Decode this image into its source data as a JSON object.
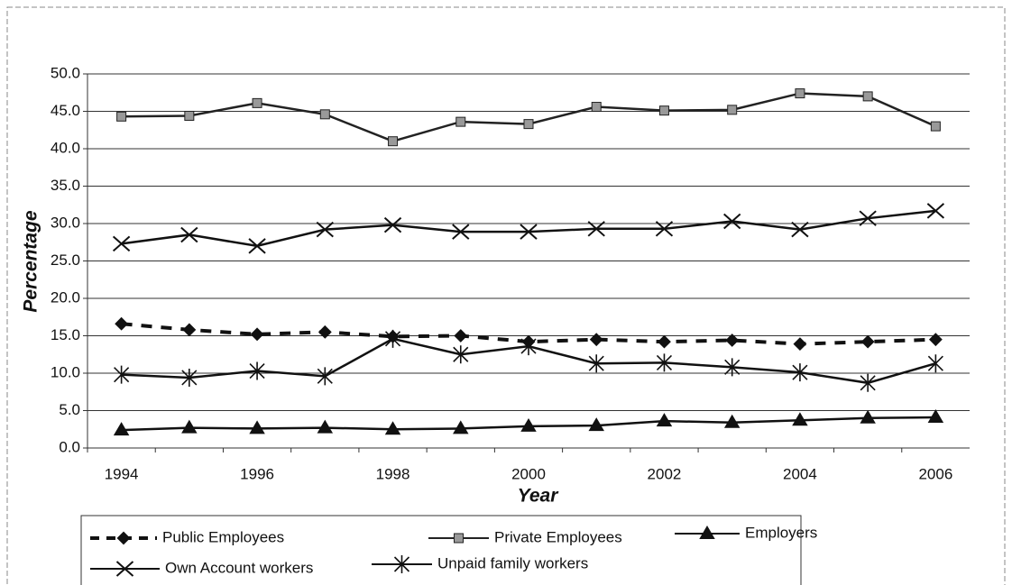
{
  "chart_data": {
    "type": "line",
    "x_label": "Year",
    "y_label": "Percentage",
    "categories": [
      "1994",
      null,
      "1996",
      null,
      "1998",
      null,
      "2000",
      null,
      "2002",
      null,
      "2004",
      null,
      "2006"
    ],
    "ylim": [
      0,
      50
    ],
    "yticks": [
      {
        "value": 0,
        "label": "0.0"
      },
      {
        "value": 5,
        "label": "5.0"
      },
      {
        "value": 10,
        "label": "10.0"
      },
      {
        "value": 15,
        "label": "15.0"
      },
      {
        "value": 20,
        "label": "20.0"
      },
      {
        "value": 25,
        "label": "25.0"
      },
      {
        "value": 30,
        "label": "30.0"
      },
      {
        "value": 35,
        "label": "35.0"
      },
      {
        "value": 40,
        "label": "40.0"
      },
      {
        "value": 45,
        "label": "45.0"
      },
      {
        "value": 50,
        "label": "50.0"
      }
    ],
    "grid": true,
    "series": [
      {
        "name": "Public Employees",
        "color": "#111111",
        "marker": "diamond",
        "dashed": true,
        "values": [
          16.6,
          15.8,
          15.2,
          15.5,
          14.9,
          15.0,
          14.2,
          14.5,
          14.2,
          14.4,
          13.9,
          14.2,
          14.5
        ]
      },
      {
        "name": "Private Employees",
        "color": "#222222",
        "marker": "square",
        "dashed": false,
        "values": [
          44.3,
          44.4,
          46.1,
          44.6,
          41.0,
          43.6,
          43.3,
          45.6,
          45.1,
          45.2,
          47.4,
          47.0,
          43.0
        ]
      },
      {
        "name": "Employers",
        "color": "#111111",
        "marker": "triangle",
        "dashed": false,
        "values": [
          2.4,
          2.7,
          2.6,
          2.7,
          2.5,
          2.6,
          2.9,
          3.0,
          3.6,
          3.4,
          3.7,
          4.0,
          4.1
        ]
      },
      {
        "name": "Own Account workers",
        "color": "#111111",
        "marker": "x",
        "dashed": false,
        "values": [
          27.3,
          28.5,
          27.0,
          29.2,
          29.8,
          28.9,
          28.9,
          29.3,
          29.3,
          30.3,
          29.2,
          30.7,
          31.7
        ]
      },
      {
        "name": "Unpaid family workers",
        "color": "#111111",
        "marker": "asterisk",
        "dashed": false,
        "values": [
          9.8,
          9.4,
          10.3,
          9.6,
          14.6,
          12.5,
          13.6,
          11.3,
          11.4,
          10.8,
          10.1,
          8.7,
          11.3
        ]
      }
    ]
  }
}
